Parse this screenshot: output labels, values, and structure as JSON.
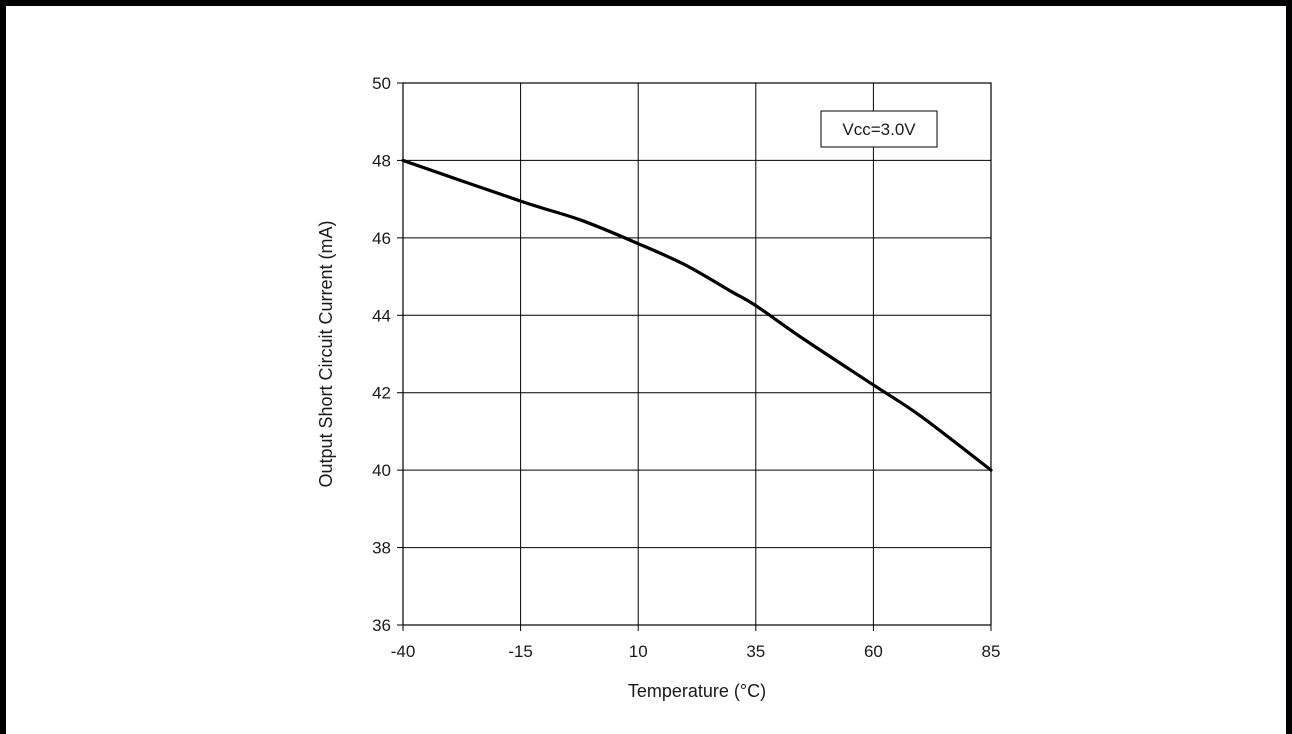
{
  "chart_data": {
    "type": "line",
    "xlabel": "Temperature (°C)",
    "ylabel": "Output Short Circuit Current (mA)",
    "x_ticks": [
      -40,
      -15,
      10,
      35,
      60,
      85
    ],
    "y_ticks": [
      36,
      38,
      40,
      42,
      44,
      46,
      48,
      50
    ],
    "xlim": [
      -40,
      85
    ],
    "ylim": [
      36,
      50
    ],
    "grid": true,
    "legend_position": "top-right",
    "annotation": "Vcc=3.0V",
    "line_color": "#000000",
    "series": [
      {
        "x": [
          -40,
          -15,
          -2,
          10,
          20,
          30,
          35,
          45,
          60,
          70,
          85
        ],
        "y": [
          48.0,
          46.95,
          46.45,
          45.85,
          45.3,
          44.6,
          44.25,
          43.4,
          42.2,
          41.4,
          40.0
        ]
      }
    ]
  }
}
